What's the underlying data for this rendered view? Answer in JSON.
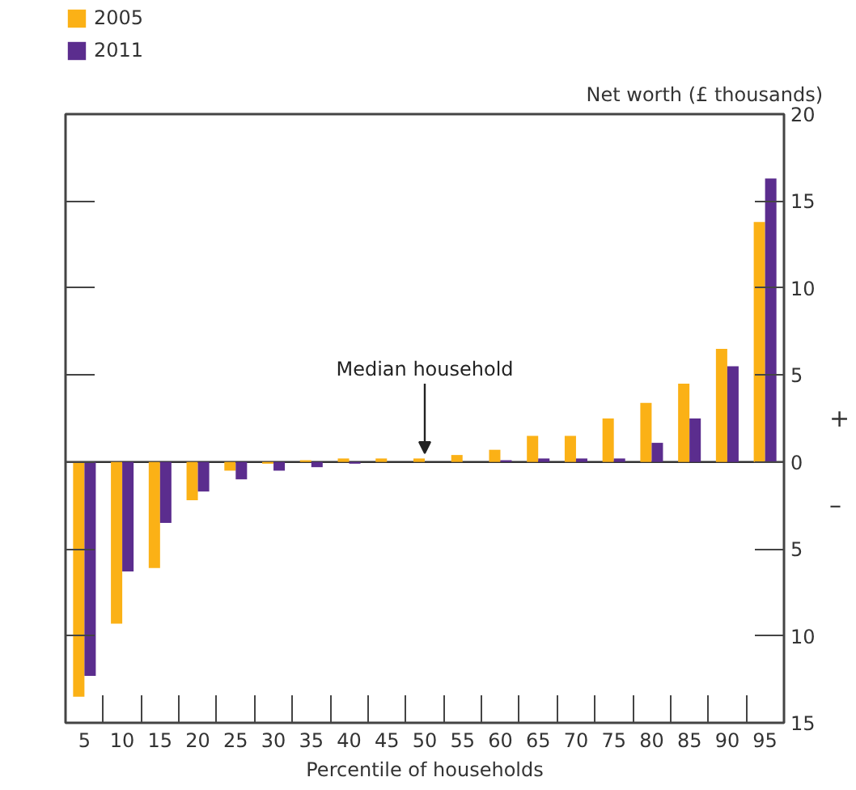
{
  "chart_data": {
    "type": "bar",
    "xlabel": "Percentile of households",
    "ylabel": "Net worth (£ thousands)",
    "categories": [
      "5",
      "10",
      "15",
      "20",
      "25",
      "30",
      "35",
      "40",
      "45",
      "50",
      "55",
      "60",
      "65",
      "70",
      "75",
      "80",
      "85",
      "90",
      "95"
    ],
    "series": [
      {
        "name": "2005",
        "color": "#fbb116",
        "values": [
          -13.5,
          -9.3,
          -6.1,
          -2.2,
          -0.5,
          -0.1,
          0.1,
          0.2,
          0.2,
          0.2,
          0.4,
          0.7,
          1.5,
          1.5,
          2.5,
          3.4,
          4.5,
          6.5,
          13.8
        ]
      },
      {
        "name": "2011",
        "color": "#5b2d8e",
        "values": [
          -12.3,
          -6.3,
          -3.5,
          -1.7,
          -1.0,
          -0.5,
          -0.3,
          -0.1,
          0,
          0,
          0,
          0.1,
          0.2,
          0.2,
          0.2,
          1.1,
          2.5,
          5.5,
          16.3
        ]
      }
    ],
    "ylim": [
      -15,
      20
    ],
    "yticks": [
      {
        "value": -15,
        "label": "15"
      },
      {
        "value": -10,
        "label": "10"
      },
      {
        "value": -5,
        "label": "5"
      },
      0,
      5,
      10,
      15,
      20
    ],
    "ref_lines": [
      {
        "axis": "y",
        "value": 0,
        "color": "#333333"
      }
    ],
    "annotations": [
      {
        "text": "Median household",
        "x": "50",
        "y": 0.2
      },
      "+",
      "–"
    ],
    "legend": "top left",
    "grid": false
  }
}
